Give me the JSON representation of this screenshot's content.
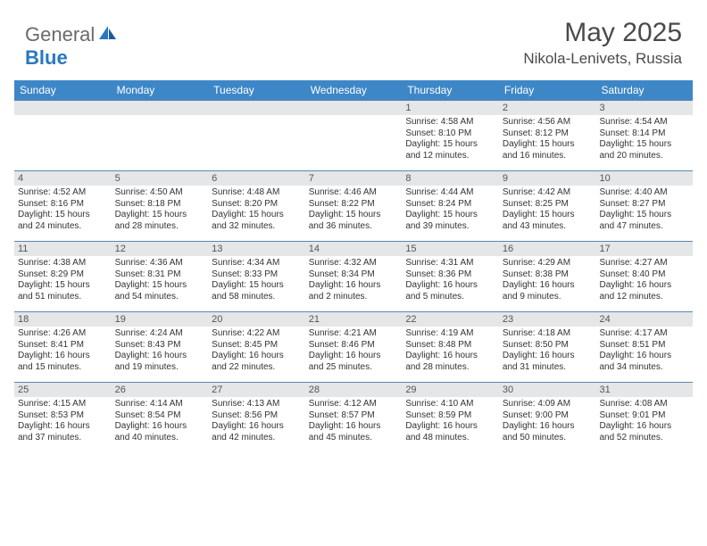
{
  "brand": {
    "general": "General",
    "blue": "Blue"
  },
  "title": {
    "month": "May 2025",
    "location": "Nikola-Lenivets, Russia"
  },
  "colors": {
    "header_bg": "#3d87c7",
    "header_text": "#ffffff",
    "daynum_bg": "#e4e6e8",
    "daynum_text": "#555555",
    "body_text": "#333333",
    "rule": "#5b86af",
    "logo_gray": "#6a6a6a",
    "logo_blue": "#2978c0"
  },
  "day_names": [
    "Sunday",
    "Monday",
    "Tuesday",
    "Wednesday",
    "Thursday",
    "Friday",
    "Saturday"
  ],
  "weeks": [
    [
      {
        "day": "",
        "lines": []
      },
      {
        "day": "",
        "lines": []
      },
      {
        "day": "",
        "lines": []
      },
      {
        "day": "",
        "lines": []
      },
      {
        "day": "1",
        "lines": [
          "Sunrise: 4:58 AM",
          "Sunset: 8:10 PM",
          "Daylight: 15 hours",
          "and 12 minutes."
        ]
      },
      {
        "day": "2",
        "lines": [
          "Sunrise: 4:56 AM",
          "Sunset: 8:12 PM",
          "Daylight: 15 hours",
          "and 16 minutes."
        ]
      },
      {
        "day": "3",
        "lines": [
          "Sunrise: 4:54 AM",
          "Sunset: 8:14 PM",
          "Daylight: 15 hours",
          "and 20 minutes."
        ]
      }
    ],
    [
      {
        "day": "4",
        "lines": [
          "Sunrise: 4:52 AM",
          "Sunset: 8:16 PM",
          "Daylight: 15 hours",
          "and 24 minutes."
        ]
      },
      {
        "day": "5",
        "lines": [
          "Sunrise: 4:50 AM",
          "Sunset: 8:18 PM",
          "Daylight: 15 hours",
          "and 28 minutes."
        ]
      },
      {
        "day": "6",
        "lines": [
          "Sunrise: 4:48 AM",
          "Sunset: 8:20 PM",
          "Daylight: 15 hours",
          "and 32 minutes."
        ]
      },
      {
        "day": "7",
        "lines": [
          "Sunrise: 4:46 AM",
          "Sunset: 8:22 PM",
          "Daylight: 15 hours",
          "and 36 minutes."
        ]
      },
      {
        "day": "8",
        "lines": [
          "Sunrise: 4:44 AM",
          "Sunset: 8:24 PM",
          "Daylight: 15 hours",
          "and 39 minutes."
        ]
      },
      {
        "day": "9",
        "lines": [
          "Sunrise: 4:42 AM",
          "Sunset: 8:25 PM",
          "Daylight: 15 hours",
          "and 43 minutes."
        ]
      },
      {
        "day": "10",
        "lines": [
          "Sunrise: 4:40 AM",
          "Sunset: 8:27 PM",
          "Daylight: 15 hours",
          "and 47 minutes."
        ]
      }
    ],
    [
      {
        "day": "11",
        "lines": [
          "Sunrise: 4:38 AM",
          "Sunset: 8:29 PM",
          "Daylight: 15 hours",
          "and 51 minutes."
        ]
      },
      {
        "day": "12",
        "lines": [
          "Sunrise: 4:36 AM",
          "Sunset: 8:31 PM",
          "Daylight: 15 hours",
          "and 54 minutes."
        ]
      },
      {
        "day": "13",
        "lines": [
          "Sunrise: 4:34 AM",
          "Sunset: 8:33 PM",
          "Daylight: 15 hours",
          "and 58 minutes."
        ]
      },
      {
        "day": "14",
        "lines": [
          "Sunrise: 4:32 AM",
          "Sunset: 8:34 PM",
          "Daylight: 16 hours",
          "and 2 minutes."
        ]
      },
      {
        "day": "15",
        "lines": [
          "Sunrise: 4:31 AM",
          "Sunset: 8:36 PM",
          "Daylight: 16 hours",
          "and 5 minutes."
        ]
      },
      {
        "day": "16",
        "lines": [
          "Sunrise: 4:29 AM",
          "Sunset: 8:38 PM",
          "Daylight: 16 hours",
          "and 9 minutes."
        ]
      },
      {
        "day": "17",
        "lines": [
          "Sunrise: 4:27 AM",
          "Sunset: 8:40 PM",
          "Daylight: 16 hours",
          "and 12 minutes."
        ]
      }
    ],
    [
      {
        "day": "18",
        "lines": [
          "Sunrise: 4:26 AM",
          "Sunset: 8:41 PM",
          "Daylight: 16 hours",
          "and 15 minutes."
        ]
      },
      {
        "day": "19",
        "lines": [
          "Sunrise: 4:24 AM",
          "Sunset: 8:43 PM",
          "Daylight: 16 hours",
          "and 19 minutes."
        ]
      },
      {
        "day": "20",
        "lines": [
          "Sunrise: 4:22 AM",
          "Sunset: 8:45 PM",
          "Daylight: 16 hours",
          "and 22 minutes."
        ]
      },
      {
        "day": "21",
        "lines": [
          "Sunrise: 4:21 AM",
          "Sunset: 8:46 PM",
          "Daylight: 16 hours",
          "and 25 minutes."
        ]
      },
      {
        "day": "22",
        "lines": [
          "Sunrise: 4:19 AM",
          "Sunset: 8:48 PM",
          "Daylight: 16 hours",
          "and 28 minutes."
        ]
      },
      {
        "day": "23",
        "lines": [
          "Sunrise: 4:18 AM",
          "Sunset: 8:50 PM",
          "Daylight: 16 hours",
          "and 31 minutes."
        ]
      },
      {
        "day": "24",
        "lines": [
          "Sunrise: 4:17 AM",
          "Sunset: 8:51 PM",
          "Daylight: 16 hours",
          "and 34 minutes."
        ]
      }
    ],
    [
      {
        "day": "25",
        "lines": [
          "Sunrise: 4:15 AM",
          "Sunset: 8:53 PM",
          "Daylight: 16 hours",
          "and 37 minutes."
        ]
      },
      {
        "day": "26",
        "lines": [
          "Sunrise: 4:14 AM",
          "Sunset: 8:54 PM",
          "Daylight: 16 hours",
          "and 40 minutes."
        ]
      },
      {
        "day": "27",
        "lines": [
          "Sunrise: 4:13 AM",
          "Sunset: 8:56 PM",
          "Daylight: 16 hours",
          "and 42 minutes."
        ]
      },
      {
        "day": "28",
        "lines": [
          "Sunrise: 4:12 AM",
          "Sunset: 8:57 PM",
          "Daylight: 16 hours",
          "and 45 minutes."
        ]
      },
      {
        "day": "29",
        "lines": [
          "Sunrise: 4:10 AM",
          "Sunset: 8:59 PM",
          "Daylight: 16 hours",
          "and 48 minutes."
        ]
      },
      {
        "day": "30",
        "lines": [
          "Sunrise: 4:09 AM",
          "Sunset: 9:00 PM",
          "Daylight: 16 hours",
          "and 50 minutes."
        ]
      },
      {
        "day": "31",
        "lines": [
          "Sunrise: 4:08 AM",
          "Sunset: 9:01 PM",
          "Daylight: 16 hours",
          "and 52 minutes."
        ]
      }
    ]
  ]
}
